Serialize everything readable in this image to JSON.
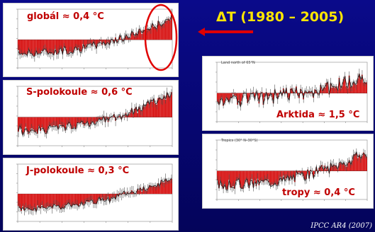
{
  "slide": {
    "title": "ΔT  (1980 – 2005)",
    "footer": "IPCC AR4 (2007)"
  },
  "panels": [
    {
      "id": "global",
      "label": "globál ≈ 0,4 °C",
      "highlight": true
    },
    {
      "id": "north",
      "label": "S-polokoule ≈ 0,6 °C"
    },
    {
      "id": "south",
      "label": "J-polokoule ≈ 0,3 °C"
    },
    {
      "id": "arctic",
      "label": "Arktida ≈ 1,5 °C",
      "subtitle": "Land north of 65°N"
    },
    {
      "id": "tropics",
      "label": "tropy ≈ 0,4 °C",
      "subtitle": "Tropics (30° N–30°S)"
    }
  ],
  "colors": {
    "background": "#06066e",
    "title": "#ffe600",
    "label": "#c00000",
    "bars": "#d40000",
    "arrow": "#e00000"
  }
}
